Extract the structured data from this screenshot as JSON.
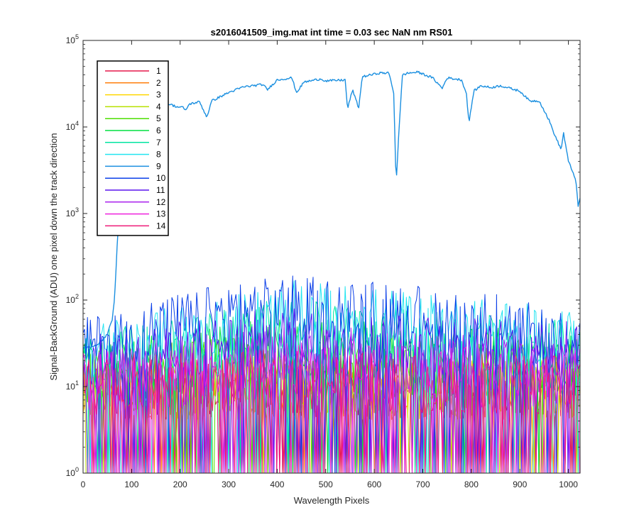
{
  "chart_data": {
    "type": "line",
    "title": "s2016041509_img.mat int time = 0.03 sec  NaN nm RS01",
    "xlabel": "Wavelength Pixels",
    "ylabel": "Signal-BackGround (ADU) one pixel down the track direction",
    "xlim": [
      0,
      1024
    ],
    "ylim": [
      1,
      100000
    ],
    "yscale": "log",
    "xticks": [
      "0",
      "100",
      "200",
      "300",
      "400",
      "500",
      "600",
      "700",
      "800",
      "900",
      "1000"
    ],
    "yticks": [
      {
        "base": "10",
        "exp": "0"
      },
      {
        "base": "10",
        "exp": "1"
      },
      {
        "base": "10",
        "exp": "2"
      },
      {
        "base": "10",
        "exp": "3"
      },
      {
        "base": "10",
        "exp": "4"
      },
      {
        "base": "10",
        "exp": "5"
      }
    ],
    "grid": false,
    "legend_position": "top-left",
    "series": [
      {
        "name": "1",
        "color": "#e6194b",
        "level": "noise",
        "profile": [
          [
            0,
            10
          ],
          [
            1024,
            10
          ]
        ]
      },
      {
        "name": "2",
        "color": "#ff7f0e",
        "level": "noise",
        "profile": [
          [
            0,
            10
          ],
          [
            1024,
            10
          ]
        ]
      },
      {
        "name": "3",
        "color": "#ffd700",
        "level": "noise",
        "profile": [
          [
            0,
            10
          ],
          [
            1024,
            10
          ]
        ]
      },
      {
        "name": "4",
        "color": "#b7e000",
        "level": "noise",
        "profile": [
          [
            0,
            11
          ],
          [
            1024,
            11
          ]
        ]
      },
      {
        "name": "5",
        "color": "#4cde00",
        "level": "noise",
        "profile": [
          [
            0,
            14
          ],
          [
            400,
            20
          ],
          [
            1024,
            18
          ]
        ]
      },
      {
        "name": "6",
        "color": "#00e040",
        "level": "noise",
        "profile": [
          [
            0,
            16
          ],
          [
            400,
            30
          ],
          [
            1024,
            22
          ]
        ]
      },
      {
        "name": "7",
        "color": "#00e5a0",
        "level": "noise",
        "profile": [
          [
            0,
            20
          ],
          [
            400,
            50
          ],
          [
            1024,
            30
          ]
        ]
      },
      {
        "name": "8",
        "color": "#22e4f0",
        "level": "noise",
        "profile": [
          [
            0,
            25
          ],
          [
            450,
            85
          ],
          [
            1024,
            38
          ]
        ]
      },
      {
        "name": "9",
        "color": "#1a8fe0",
        "level": "signal",
        "profile": [
          [
            0,
            28
          ],
          [
            30,
            30
          ],
          [
            50,
            40
          ],
          [
            60,
            60
          ],
          [
            65,
            110
          ],
          [
            70,
            400
          ],
          [
            75,
            1200
          ],
          [
            80,
            3000
          ],
          [
            85,
            7000
          ],
          [
            95,
            15000
          ],
          [
            120,
            17000
          ],
          [
            150,
            17500
          ],
          [
            170,
            19000
          ],
          [
            195,
            17000
          ],
          [
            205,
            17000
          ],
          [
            210,
            15500
          ],
          [
            220,
            18500
          ],
          [
            240,
            19500
          ],
          [
            255,
            13000
          ],
          [
            265,
            20000
          ],
          [
            300,
            25000
          ],
          [
            330,
            29000
          ],
          [
            370,
            31000
          ],
          [
            380,
            27000
          ],
          [
            400,
            35000
          ],
          [
            430,
            37000
          ],
          [
            440,
            25000
          ],
          [
            455,
            33000
          ],
          [
            490,
            36000
          ],
          [
            500,
            34000
          ],
          [
            540,
            35000
          ],
          [
            545,
            16000
          ],
          [
            555,
            27000
          ],
          [
            568,
            16500
          ],
          [
            575,
            38000
          ],
          [
            610,
            42000
          ],
          [
            630,
            42000
          ],
          [
            640,
            25000
          ],
          [
            645,
            2200
          ],
          [
            650,
            7500
          ],
          [
            658,
            40000
          ],
          [
            670,
            42000
          ],
          [
            690,
            43000
          ],
          [
            720,
            37000
          ],
          [
            740,
            28000
          ],
          [
            750,
            37000
          ],
          [
            780,
            35000
          ],
          [
            790,
            24000
          ],
          [
            795,
            11000
          ],
          [
            805,
            26000
          ],
          [
            820,
            30000
          ],
          [
            840,
            28500
          ],
          [
            860,
            30000
          ],
          [
            900,
            26000
          ],
          [
            920,
            20000
          ],
          [
            940,
            20000
          ],
          [
            960,
            12000
          ],
          [
            972,
            8000
          ],
          [
            985,
            5500
          ],
          [
            990,
            8500
          ],
          [
            1000,
            4000
          ],
          [
            1015,
            2500
          ],
          [
            1020,
            1200
          ],
          [
            1024,
            1500
          ]
        ]
      },
      {
        "name": "10",
        "color": "#0b3fe8",
        "level": "noise",
        "profile": [
          [
            0,
            30
          ],
          [
            100,
            45
          ],
          [
            250,
            70
          ],
          [
            420,
            95
          ],
          [
            550,
            85
          ],
          [
            700,
            75
          ],
          [
            850,
            60
          ],
          [
            1024,
            30
          ]
        ]
      },
      {
        "name": "11",
        "color": "#5a12ee",
        "level": "noise",
        "profile": [
          [
            0,
            20
          ],
          [
            400,
            40
          ],
          [
            1024,
            28
          ]
        ]
      },
      {
        "name": "12",
        "color": "#aa22ee",
        "level": "noise",
        "profile": [
          [
            0,
            15
          ],
          [
            400,
            25
          ],
          [
            1024,
            20
          ]
        ]
      },
      {
        "name": "13",
        "color": "#ee22dd",
        "level": "noise",
        "profile": [
          [
            0,
            12
          ],
          [
            400,
            16
          ],
          [
            1024,
            13
          ]
        ]
      },
      {
        "name": "14",
        "color": "#ee1a78",
        "level": "noise",
        "profile": [
          [
            0,
            11
          ],
          [
            400,
            13
          ],
          [
            1024,
            11
          ]
        ]
      }
    ]
  }
}
